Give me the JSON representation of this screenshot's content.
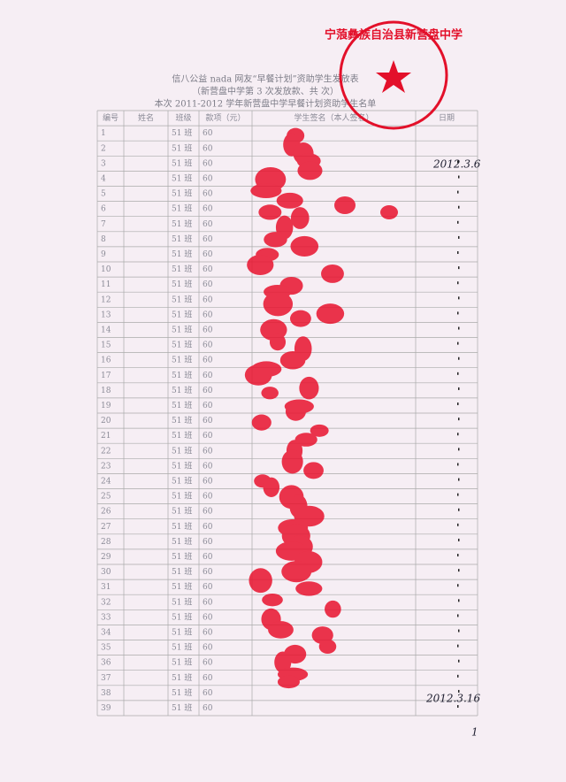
{
  "header": {
    "title": "信八公益 nada 网友“早餐计划”资助学生发放表",
    "subtitle": "（新营盘中学第 3 次发放款、共 次）",
    "note": "本次 2011-2012 学年新营盘中学早餐计划资助学生名单"
  },
  "table": {
    "columns": [
      "编号",
      "姓名",
      "班级",
      "款项（元）",
      "学生签名（本人签名）",
      "日期"
    ],
    "rows": [
      [
        "1",
        "51 班",
        "60"
      ],
      [
        "2",
        "51 班",
        "60"
      ],
      [
        "3",
        "51 班",
        "60"
      ],
      [
        "4",
        "51 班",
        "60"
      ],
      [
        "5",
        "51 班",
        "60"
      ],
      [
        "6",
        "51 班",
        "60"
      ],
      [
        "7",
        "51 班",
        "60"
      ],
      [
        "8",
        "51 班",
        "60"
      ],
      [
        "9",
        "51 班",
        "60"
      ],
      [
        "10",
        "51 班",
        "60"
      ],
      [
        "11",
        "51 班",
        "60"
      ],
      [
        "12",
        "51 班",
        "60"
      ],
      [
        "13",
        "51 班",
        "60"
      ],
      [
        "14",
        "51 班",
        "60"
      ],
      [
        "15",
        "51 班",
        "60"
      ],
      [
        "16",
        "51 班",
        "60"
      ],
      [
        "17",
        "51 班",
        "60"
      ],
      [
        "18",
        "51 班",
        "60"
      ],
      [
        "19",
        "51 班",
        "60"
      ],
      [
        "20",
        "51 班",
        "60"
      ],
      [
        "21",
        "51 班",
        "60"
      ],
      [
        "22",
        "51 班",
        "60"
      ],
      [
        "23",
        "51 班",
        "60"
      ],
      [
        "24",
        "51 班",
        "60"
      ],
      [
        "25",
        "51 班",
        "60"
      ],
      [
        "26",
        "51 班",
        "60"
      ],
      [
        "27",
        "51 班",
        "60"
      ],
      [
        "28",
        "51 班",
        "60"
      ],
      [
        "29",
        "51 班",
        "60"
      ],
      [
        "30",
        "51 班",
        "60"
      ],
      [
        "31",
        "51 班",
        "60"
      ],
      [
        "32",
        "51 班",
        "60"
      ],
      [
        "33",
        "51 班",
        "60"
      ],
      [
        "34",
        "51 班",
        "60"
      ],
      [
        "35",
        "51 班",
        "60"
      ],
      [
        "36",
        "51 班",
        "60"
      ],
      [
        "37",
        "51 班",
        "60"
      ],
      [
        "38",
        "51 班",
        "60"
      ],
      [
        "39",
        "51 班",
        "60"
      ]
    ]
  },
  "stamp": "宁蒗彝族自治县新营盘中学",
  "dates": [
    "2012.3.6",
    "2012.3.16"
  ],
  "page_number": "1"
}
